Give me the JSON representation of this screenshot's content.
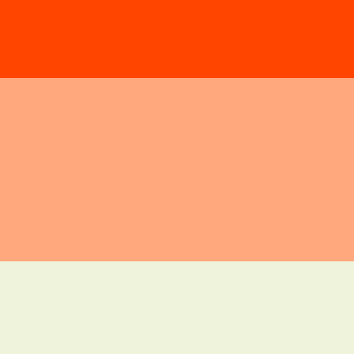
{
  "palette": {
    "swatches": [
      {
        "name": "orange-red",
        "color": "#FF4500"
      },
      {
        "name": "light-salmon",
        "color": "#FFA87D"
      },
      {
        "name": "pale-cream",
        "color": "#F0F3DC"
      }
    ]
  }
}
